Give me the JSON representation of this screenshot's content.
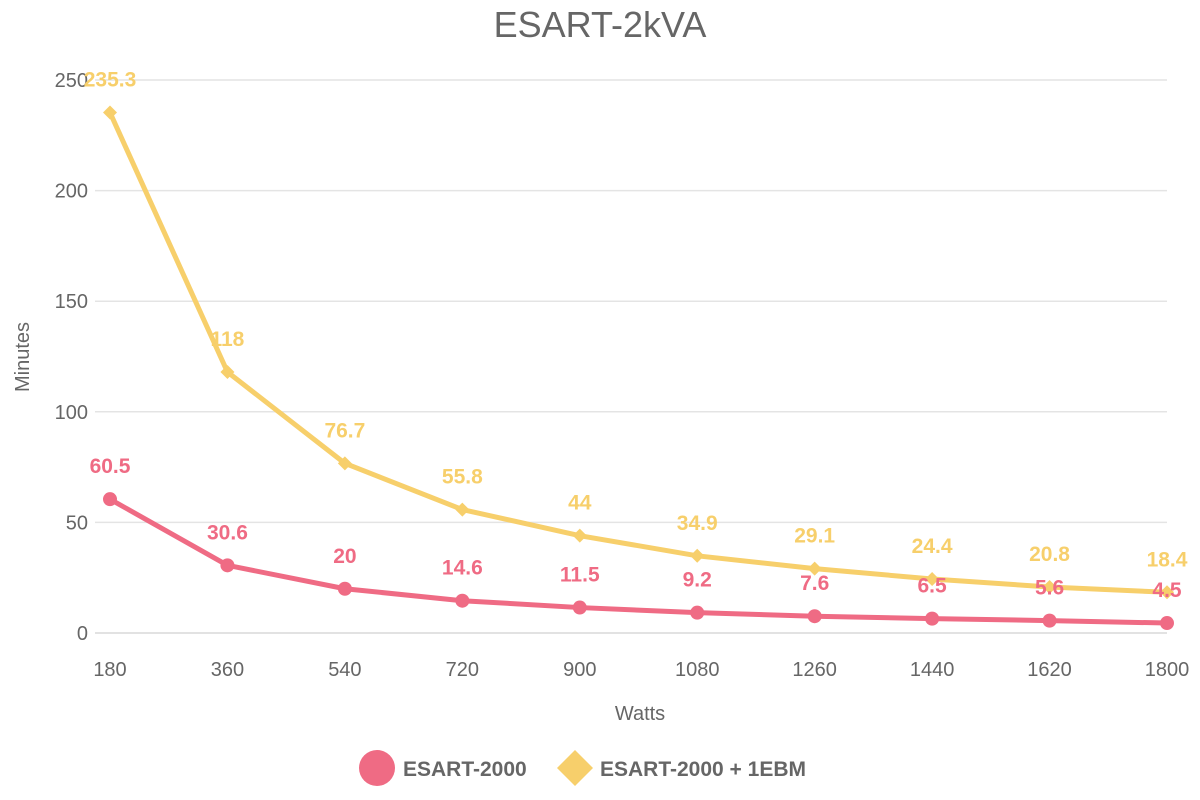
{
  "chart_data": {
    "type": "line",
    "title": "ESART-2kVA",
    "xlabel": "Watts",
    "ylabel": "Minutes",
    "categories": [
      "180",
      "360",
      "540",
      "720",
      "900",
      "1080",
      "1260",
      "1440",
      "1620",
      "1800"
    ],
    "ylim": [
      0,
      250
    ],
    "yticks": [
      "0",
      "50",
      "100",
      "150",
      "200",
      "250"
    ],
    "grid": true,
    "legend_position": "bottom",
    "series": [
      {
        "name": "ESART-2000",
        "color": "#ef6b84",
        "marker": "circle",
        "values": [
          60.5,
          30.6,
          20,
          14.6,
          11.5,
          9.2,
          7.6,
          6.5,
          5.6,
          4.5
        ]
      },
      {
        "name": "ESART-2000 + 1EBM",
        "color": "#f7cf6b",
        "marker": "diamond",
        "values": [
          235.3,
          118,
          76.7,
          55.8,
          44,
          34.9,
          29.1,
          24.4,
          20.8,
          18.4
        ]
      }
    ]
  }
}
